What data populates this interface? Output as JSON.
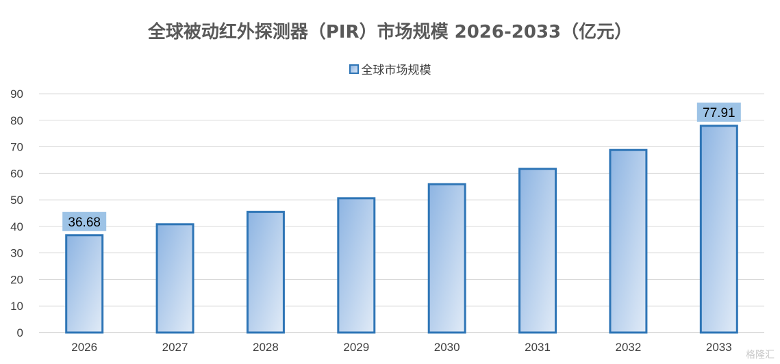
{
  "chart_data": {
    "type": "bar",
    "title": "全球被动红外探测器（PIR）市场规模 2026-2033（亿元）",
    "xlabel": "",
    "ylabel": "",
    "categories": [
      "2026",
      "2027",
      "2028",
      "2029",
      "2030",
      "2031",
      "2032",
      "2033"
    ],
    "series": [
      {
        "name": "全球市场规模",
        "values": [
          36.68,
          40.8,
          45.5,
          50.6,
          55.9,
          61.7,
          68.8,
          77.91
        ]
      }
    ],
    "data_labels": {
      "2026": "36.68",
      "2033": "77.91"
    },
    "ylim": [
      0,
      90
    ],
    "yticks": [
      0,
      10,
      20,
      30,
      40,
      50,
      60,
      70,
      80,
      90
    ],
    "grid": true,
    "legend_position": "top",
    "colors": {
      "bar_top": "#8db4e2",
      "bar_bottom": "#dbe7f6",
      "bar_border": "#2e75b6",
      "label_bg": "#9dc3e6",
      "grid": "#d9d9d9",
      "text": "#404040"
    }
  },
  "watermark": "格隆汇"
}
